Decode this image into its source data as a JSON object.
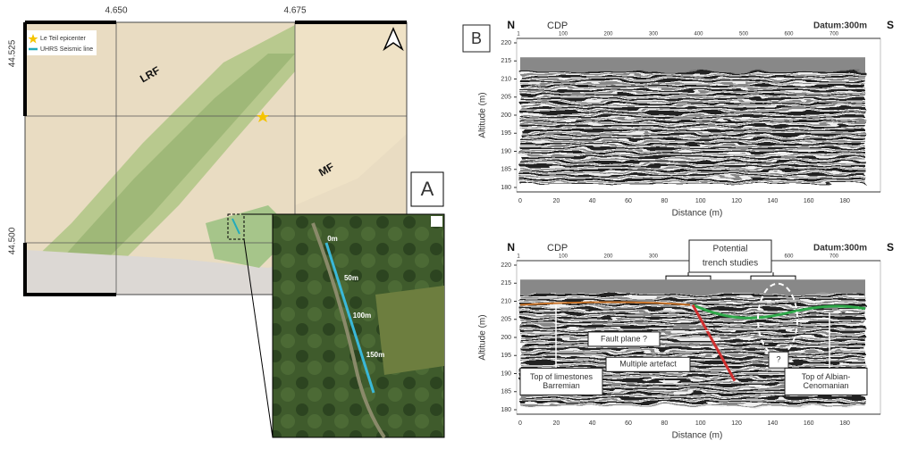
{
  "map": {
    "panel": "A",
    "lon_ticks": [
      {
        "value": 4.65,
        "label": "4.650"
      },
      {
        "value": 4.675,
        "label": "4.675"
      }
    ],
    "lat_ticks": [
      {
        "value": 44.525,
        "label": "44.525"
      },
      {
        "value": 44.5,
        "label": "44.500"
      }
    ],
    "legend": [
      "Le Teil epicenter",
      "UHRS Seismic line"
    ],
    "faults": [
      "LRF",
      "MF"
    ],
    "inset_labels": [
      "0m",
      "50m",
      "100m",
      "150m"
    ]
  },
  "profiles": [
    {
      "panel": "B",
      "left": "N",
      "right": "S",
      "cdp_label": "CDP",
      "datum": "Datum:300m",
      "cdp_ticks": [
        1,
        100,
        200,
        300,
        400,
        500,
        600,
        700
      ],
      "ylabel": "Altitude (m)",
      "yticks": [
        180,
        185,
        190,
        195,
        200,
        205,
        210,
        215,
        220
      ],
      "xlabel": "Distance (m)",
      "xticks": [
        0,
        20,
        40,
        60,
        80,
        100,
        120,
        140,
        160,
        180
      ]
    },
    {
      "left": "N",
      "right": "S",
      "cdp_label": "CDP",
      "datum": "Datum:300m",
      "cdp_ticks": [
        1,
        100,
        200,
        300,
        400,
        500,
        600,
        700
      ],
      "ylabel": "Altitude (m)",
      "yticks": [
        180,
        185,
        190,
        195,
        200,
        205,
        210,
        215,
        220
      ],
      "xlabel": "Distance (m)",
      "xticks": [
        0,
        20,
        40,
        60,
        80,
        100,
        120,
        140,
        160,
        180
      ],
      "annotations": {
        "trench": [
          "Potential",
          "trench studies"
        ],
        "fault": "Fault plane ?",
        "multiple": "Multiple artefact",
        "question": "?",
        "barremian": [
          "Top of limestones",
          "Barremian"
        ],
        "albian": [
          "Top of Albian-",
          "Cenomanian"
        ]
      }
    }
  ]
}
